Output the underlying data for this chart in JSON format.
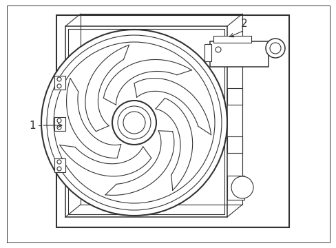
{
  "bg_color": "#ffffff",
  "line_color": "#333333",
  "lw_main": 1.5,
  "lw_thin": 0.8,
  "lw_med": 1.1,
  "figsize": [
    4.89,
    3.6
  ],
  "dpi": 100,
  "label1": "1",
  "label2": "2"
}
